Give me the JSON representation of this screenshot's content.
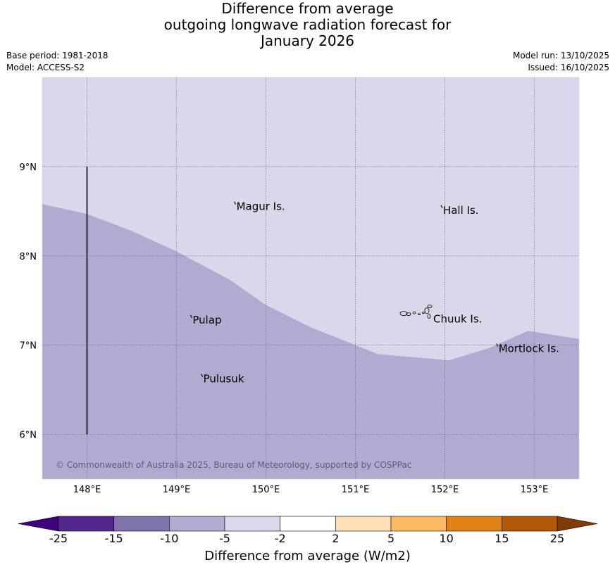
{
  "title": {
    "line1": "Difference from average",
    "line2": "outgoing longwave radiation forecast for",
    "line3": "January 2026"
  },
  "meta": {
    "base_period": "Base period: 1981-2018",
    "model": "Model: ACCESS-S2",
    "model_run": "Model run: 13/10/2025",
    "issued": "Issued: 16/10/2025"
  },
  "copyright": "© Commonwealth of Australia 2025, Bureau of Meteorology, supported by COSPPac",
  "map": {
    "lon_range": [
      147.5,
      153.5
    ],
    "lat_range": [
      5.5,
      10.0
    ],
    "lon_ticks": [
      {
        "value": 148,
        "label": "148°E"
      },
      {
        "value": 149,
        "label": "149°E"
      },
      {
        "value": 150,
        "label": "150°E"
      },
      {
        "value": 151,
        "label": "151°E"
      },
      {
        "value": 152,
        "label": "152°E"
      },
      {
        "value": 153,
        "label": "153°E"
      }
    ],
    "lat_ticks": [
      {
        "value": 6,
        "label": "6°N"
      },
      {
        "value": 7,
        "label": "7°N"
      },
      {
        "value": 8,
        "label": "8°N"
      },
      {
        "value": 9,
        "label": "9°N"
      }
    ],
    "upper_fill_color": "#d8d8ea",
    "lower_fill_color": "#b1abd2",
    "boundary": [
      [
        147.5,
        8.58
      ],
      [
        148.0,
        8.47
      ],
      [
        148.5,
        8.28
      ],
      [
        149.0,
        8.05
      ],
      [
        149.6,
        7.73
      ],
      [
        150.0,
        7.45
      ],
      [
        150.5,
        7.2
      ],
      [
        151.0,
        7.0
      ],
      [
        151.25,
        6.9
      ],
      [
        152.05,
        6.83
      ],
      [
        152.5,
        6.97
      ],
      [
        152.93,
        7.16
      ],
      [
        153.5,
        7.07
      ]
    ],
    "meridian_line": {
      "lon": 148.0,
      "lat_from": 6.0,
      "lat_to": 9.0
    },
    "places": [
      {
        "name": "Magur Is.",
        "lon": 149.67,
        "lat": 8.56
      },
      {
        "name": "Hall Is.",
        "lon": 151.98,
        "lat": 8.52
      },
      {
        "name": "Pulap",
        "lon": 149.18,
        "lat": 7.29
      },
      {
        "name": "Chuuk Is.",
        "lon": 151.87,
        "lat": 7.3
      },
      {
        "name": "Mortlock Is.",
        "lon": 152.6,
        "lat": 6.97
      },
      {
        "name": "Pulusuk",
        "lon": 149.3,
        "lat": 6.63
      }
    ]
  },
  "colorbar": {
    "label": "Difference from average (W/m2)",
    "tick_labels": [
      "-25",
      "-15",
      "-10",
      "-5",
      "-2",
      "2",
      "5",
      "10",
      "15",
      "25"
    ],
    "under_color": "#3f007d",
    "over_color": "#7f3b08",
    "colors": [
      "#54278f",
      "#8073ac",
      "#b2abd2",
      "#d8daeb",
      "#ffffff",
      "#fee0b6",
      "#fdb863",
      "#e08214",
      "#b35806"
    ]
  }
}
